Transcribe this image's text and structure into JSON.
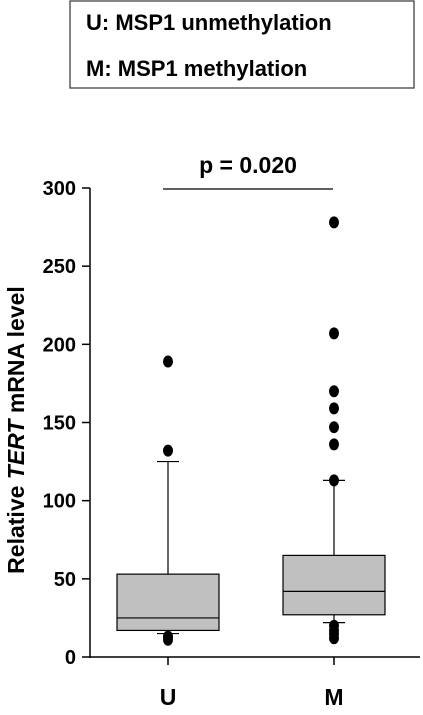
{
  "chart_data": {
    "type": "box",
    "legend_lines": [
      "U: MSP1 unmethylation",
      "M: MSP1 methylation"
    ],
    "annotation": "p = 0.020",
    "ylabel": [
      "Relative ",
      "TERT",
      " mRNA level"
    ],
    "categories": [
      "U",
      "M"
    ],
    "boxes": [
      {
        "whisker_low": 15,
        "q1": 17,
        "median": 25,
        "q3": 53,
        "whisker_high": 125,
        "outliers": [
          189,
          132,
          13,
          11
        ]
      },
      {
        "whisker_low": 22,
        "q1": 27,
        "median": 42,
        "q3": 65,
        "whisker_high": 113,
        "outliers": [
          278,
          207,
          170,
          159,
          147,
          136,
          113,
          20,
          17,
          15,
          12
        ]
      }
    ],
    "color": "#c0c0c0",
    "ylim": [
      0,
      300
    ],
    "yticks": [
      0,
      50,
      100,
      150,
      200,
      250,
      300
    ]
  }
}
